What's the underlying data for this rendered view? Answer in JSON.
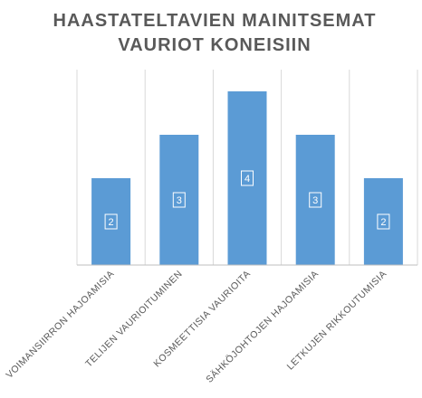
{
  "chart_data": {
    "type": "bar",
    "title": [
      "HAASTATELTAVIEN MAINITSEMAT",
      "VAURIOT KONEISIIN"
    ],
    "categories": [
      "VOIMANSIIRRON HAJOAMISIA",
      "TELIJEN VAURIOITUMINEN",
      "KOSMEETTISIA VAURIOITA",
      "SÄHKÖJOHTOJEN HAJOAMISIA",
      "LETKUJEN RIKKOUTUMISIA"
    ],
    "values": [
      2,
      3,
      4,
      3,
      2
    ],
    "data_labels": [
      "2",
      "3",
      "4",
      "3",
      "2"
    ],
    "ylim": [
      0,
      4
    ],
    "grid": "vertical-category-separators",
    "legend": "none",
    "colors": {
      "bar": "#5b9bd5",
      "gridline": "#d9d9d9",
      "axis": "#bfbfbf",
      "text": "#595959",
      "label_text": "#ffffff"
    }
  }
}
